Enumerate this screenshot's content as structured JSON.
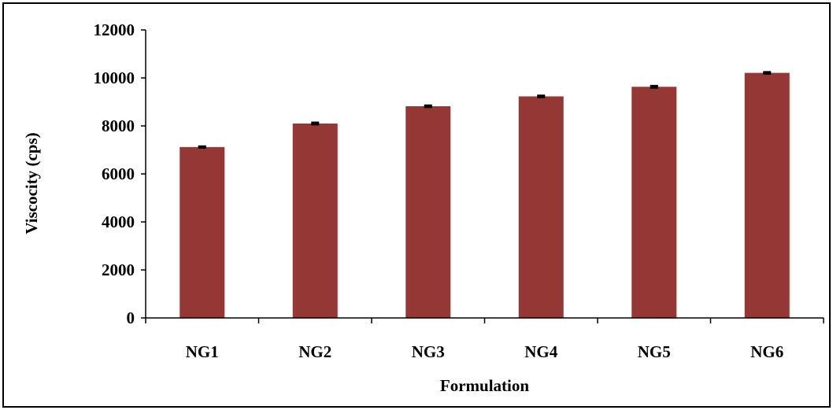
{
  "chart_data": {
    "type": "bar",
    "title": "",
    "xlabel": "Formulation",
    "ylabel": "Viscocity (cps)",
    "ylim": [
      0,
      12000
    ],
    "yticks": [
      0,
      2000,
      4000,
      6000,
      8000,
      10000,
      12000
    ],
    "ytick_labels": [
      "0",
      "2000",
      "4000",
      "6000",
      "8000",
      "10000",
      "12000"
    ],
    "categories": [
      "NG1",
      "NG2",
      "NG3",
      "NG4",
      "NG5",
      "NG6"
    ],
    "values": [
      7120,
      8100,
      8820,
      9230,
      9630,
      10210
    ],
    "errors": [
      20,
      30,
      25,
      25,
      30,
      25
    ],
    "grid": false,
    "legend": "none",
    "bar_color": "#953735"
  }
}
